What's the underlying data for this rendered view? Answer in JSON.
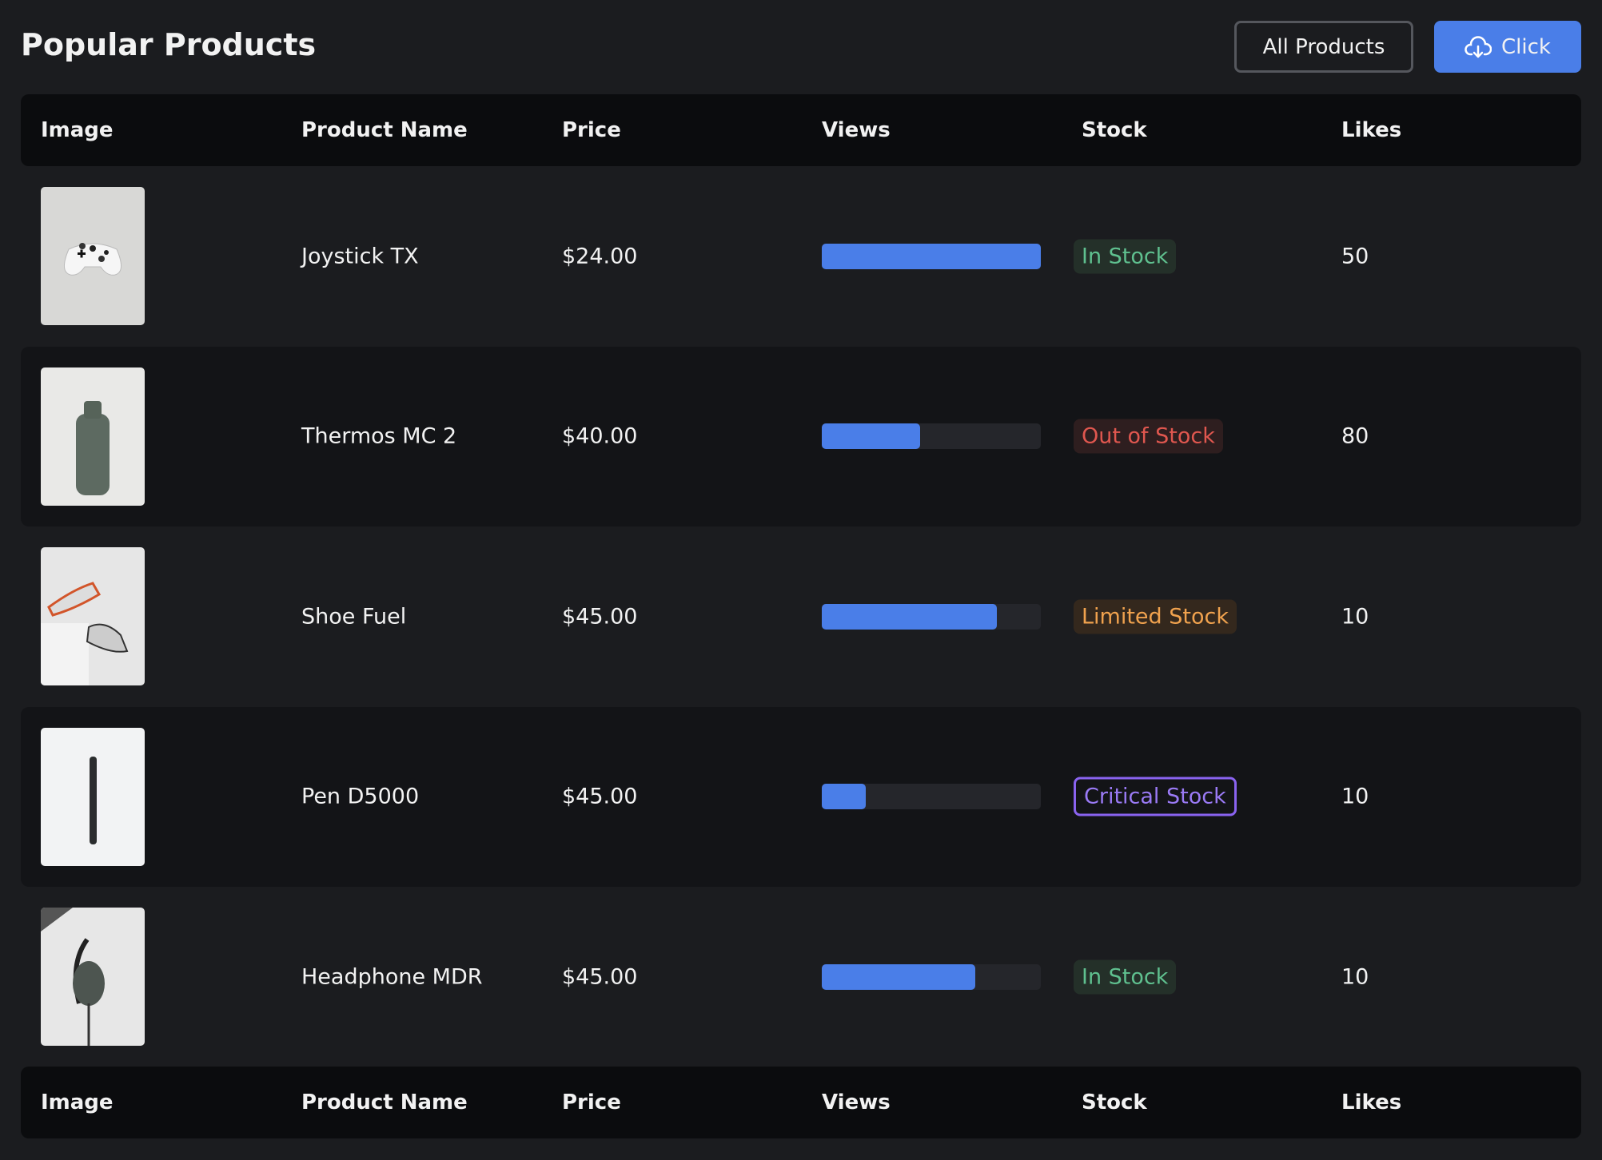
{
  "header": {
    "title": "Popular Products",
    "buttons": [
      "All Products",
      "Click"
    ]
  },
  "table": {
    "columns": [
      "Image",
      "Product Name",
      "Price",
      "Views",
      "Stock",
      "Likes"
    ],
    "rows": [
      {
        "name": "Joystick TX",
        "price": "$24.00",
        "views": 100,
        "stock": "In Stock",
        "likes": "50"
      },
      {
        "name": "Thermos MC 2",
        "price": "$40.00",
        "views": 45,
        "stock": "Out of Stock",
        "likes": "80"
      },
      {
        "name": "Shoe Fuel",
        "price": "$45.00",
        "views": 80,
        "stock": "Limited Stock",
        "likes": "10"
      },
      {
        "name": "Pen D5000",
        "price": "$45.00",
        "views": 20,
        "stock": "Critical Stock",
        "likes": "10"
      },
      {
        "name": "Headphone MDR",
        "price": "$45.00",
        "views": 70,
        "stock": "In Stock",
        "likes": "10"
      }
    ]
  }
}
